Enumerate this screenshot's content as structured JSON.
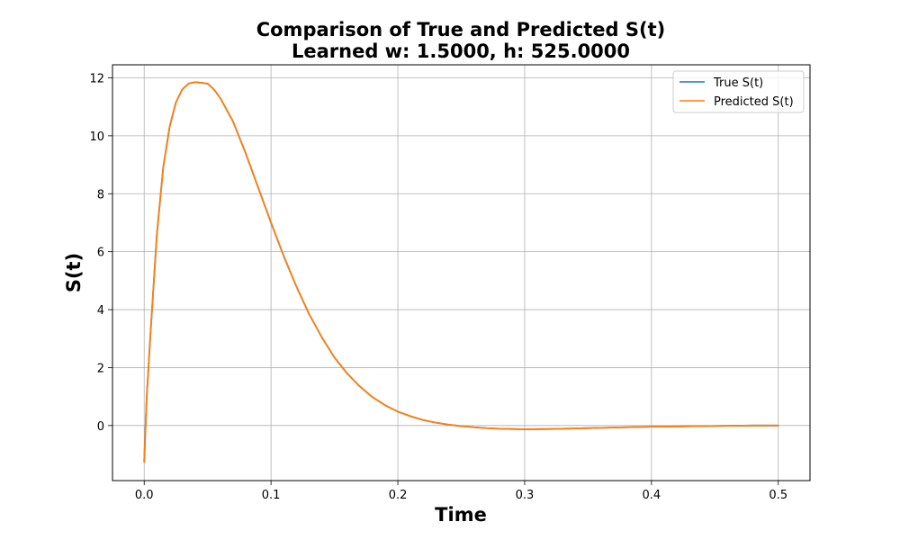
{
  "chart_data": {
    "type": "line",
    "title": "Comparison of True and Predicted S(t)",
    "subtitle": "Learned w: 1.5000, h: 525.0000",
    "xlabel": "Time",
    "ylabel": "S(t)",
    "xlim": [
      -0.025,
      0.525
    ],
    "ylim": [
      -1.9,
      12.45
    ],
    "xticks": [
      0.0,
      0.1,
      0.2,
      0.3,
      0.4,
      0.5
    ],
    "xtick_labels": [
      "0.0",
      "0.1",
      "0.2",
      "0.3",
      "0.4",
      "0.5"
    ],
    "yticks": [
      0,
      2,
      4,
      6,
      8,
      10,
      12
    ],
    "ytick_labels": [
      "0",
      "2",
      "4",
      "6",
      "8",
      "10",
      "12"
    ],
    "grid": true,
    "legend_position": "top-right",
    "x": [
      0.0,
      0.002,
      0.005,
      0.01,
      0.015,
      0.02,
      0.025,
      0.03,
      0.035,
      0.04,
      0.045,
      0.05,
      0.055,
      0.06,
      0.07,
      0.08,
      0.09,
      0.1,
      0.11,
      0.12,
      0.13,
      0.14,
      0.15,
      0.16,
      0.17,
      0.18,
      0.19,
      0.2,
      0.21,
      0.22,
      0.23,
      0.24,
      0.25,
      0.26,
      0.27,
      0.28,
      0.29,
      0.3,
      0.32,
      0.34,
      0.36,
      0.38,
      0.4,
      0.42,
      0.44,
      0.46,
      0.48,
      0.5
    ],
    "series": [
      {
        "name": "True S(t)",
        "color": "#1f77b4",
        "values": [
          -1.25,
          1.0,
          3.2,
          6.6,
          8.9,
          10.3,
          11.15,
          11.6,
          11.8,
          11.85,
          11.83,
          11.8,
          11.6,
          11.3,
          10.5,
          9.4,
          8.2,
          7.0,
          5.85,
          4.8,
          3.85,
          3.05,
          2.35,
          1.8,
          1.35,
          0.98,
          0.7,
          0.48,
          0.32,
          0.19,
          0.1,
          0.03,
          -0.02,
          -0.06,
          -0.09,
          -0.11,
          -0.12,
          -0.13,
          -0.12,
          -0.1,
          -0.08,
          -0.06,
          -0.04,
          -0.03,
          -0.02,
          -0.01,
          0.0,
          0.0
        ]
      },
      {
        "name": "Predicted S(t)",
        "color": "#ff7f0e",
        "values": [
          -1.25,
          1.0,
          3.2,
          6.6,
          8.9,
          10.3,
          11.15,
          11.6,
          11.8,
          11.85,
          11.83,
          11.8,
          11.6,
          11.3,
          10.5,
          9.4,
          8.2,
          7.0,
          5.85,
          4.8,
          3.85,
          3.05,
          2.35,
          1.8,
          1.35,
          0.98,
          0.7,
          0.48,
          0.32,
          0.19,
          0.1,
          0.03,
          -0.02,
          -0.06,
          -0.09,
          -0.11,
          -0.12,
          -0.13,
          -0.12,
          -0.1,
          -0.08,
          -0.06,
          -0.04,
          -0.03,
          -0.02,
          -0.01,
          0.0,
          0.0
        ]
      }
    ]
  }
}
